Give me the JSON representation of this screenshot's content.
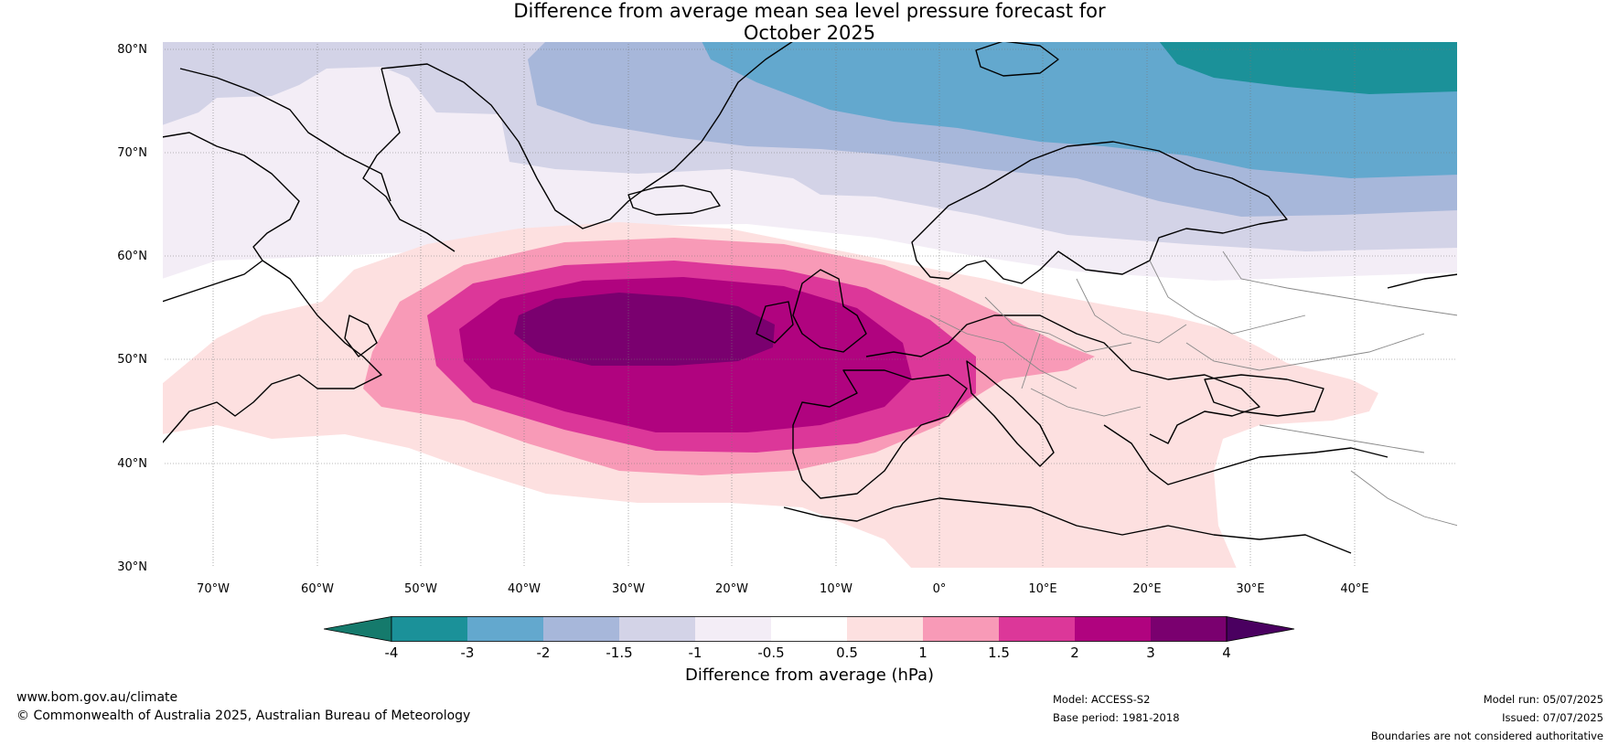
{
  "title_line1": "Difference from average mean sea level pressure forecast for",
  "title_line2": "October 2025",
  "lat_labels": [
    "80°N",
    "70°N",
    "60°N",
    "50°N",
    "40°N",
    "30°N"
  ],
  "lon_labels": [
    "70°W",
    "60°W",
    "50°W",
    "40°W",
    "30°W",
    "20°W",
    "10°W",
    "0°",
    "10°E",
    "20°E",
    "30°E",
    "40°E"
  ],
  "colorbar": {
    "title": "Difference from average (hPa)",
    "ticks": [
      "-4",
      "-3",
      "-2",
      "-1.5",
      "-1",
      "-0.5",
      "0.5",
      "1",
      "1.5",
      "2",
      "3",
      "4"
    ],
    "colors": [
      "#157a6c",
      "#1b9199",
      "#63a8ce",
      "#a7b7da",
      "#d3d3e7",
      "#f3edf6",
      "#ffffff",
      "#fde0e0",
      "#f89ab7",
      "#dc3799",
      "#b0037f",
      "#7a006f",
      "#4a0060"
    ]
  },
  "footer": {
    "url": "www.bom.gov.au/climate",
    "copyright": "© Commonwealth of Australia 2025, Australian Bureau of Meteorology",
    "model": "Model: ACCESS-S2",
    "base_period": "Base period: 1981-2018",
    "model_run": "Model run: 05/07/2025",
    "issued": "Issued: 07/07/2025",
    "disclaimer": "Boundaries are not considered authoritative"
  }
}
